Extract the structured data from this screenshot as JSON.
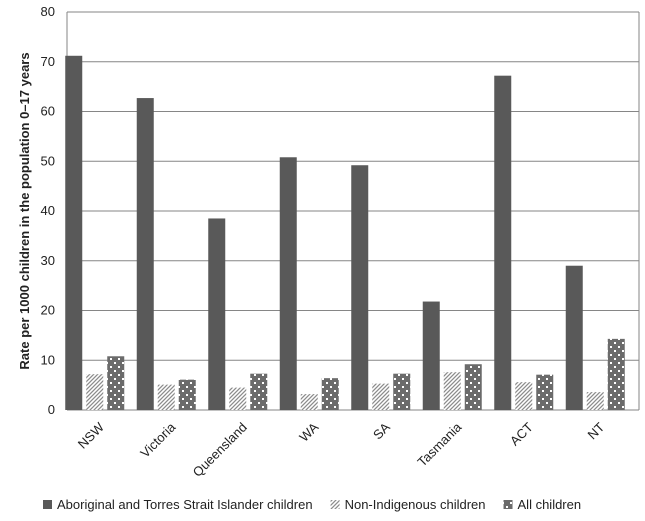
{
  "chart_data": {
    "type": "bar",
    "categories": [
      "NSW",
      "Victoria",
      "Queensland",
      "WA",
      "SA",
      "Tasmania",
      "ACT",
      "NT"
    ],
    "series": [
      {
        "name": "Aboriginal and Torres Strait Islander children",
        "values": [
          71.2,
          62.7,
          38.5,
          50.8,
          49.2,
          21.8,
          67.2,
          29.0
        ],
        "color": "#595959",
        "pattern": "solid"
      },
      {
        "name": "Non-Indigenous children",
        "values": [
          7.2,
          5.1,
          4.5,
          3.2,
          5.3,
          7.6,
          5.6,
          3.6
        ],
        "color": "#bfbfbf",
        "pattern": "diagonal-hatch"
      },
      {
        "name": "All children",
        "values": [
          10.8,
          6.1,
          7.3,
          6.4,
          7.3,
          9.2,
          7.1,
          14.3
        ],
        "color": "#7f7f7f",
        "pattern": "checker"
      }
    ],
    "ylabel": "Rate per 1000 children in the population 0–17 years",
    "xlabel": "",
    "ylim": [
      0,
      80
    ],
    "yticks": [
      0,
      10,
      20,
      30,
      40,
      50,
      60,
      70,
      80
    ],
    "grid": true,
    "legend": "bottom"
  }
}
